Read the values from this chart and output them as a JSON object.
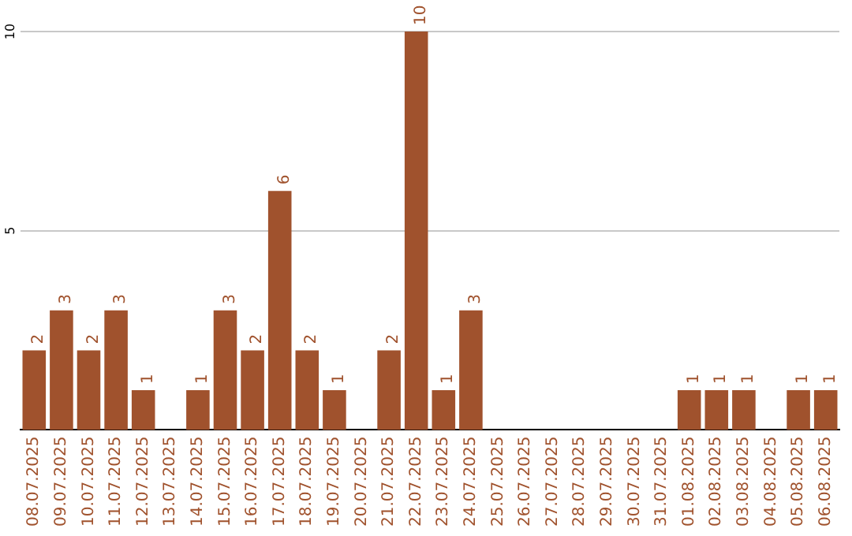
{
  "chart_data": {
    "type": "bar",
    "categories": [
      "08.07.2025",
      "09.07.2025",
      "10.07.2025",
      "11.07.2025",
      "12.07.2025",
      "13.07.2025",
      "14.07.2025",
      "15.07.2025",
      "16.07.2025",
      "17.07.2025",
      "18.07.2025",
      "19.07.2025",
      "20.07.2025",
      "21.07.2025",
      "22.07.2025",
      "23.07.2025",
      "24.07.2025",
      "25.07.2025",
      "26.07.2025",
      "27.07.2025",
      "28.07.2025",
      "29.07.2025",
      "30.07.2025",
      "31.07.2025",
      "01.08.2025",
      "02.08.2025",
      "03.08.2025",
      "04.08.2025",
      "05.08.2025",
      "06.08.2025"
    ],
    "values": [
      2,
      3,
      2,
      3,
      1,
      0,
      1,
      3,
      2,
      6,
      2,
      1,
      0,
      2,
      10,
      1,
      3,
      0,
      0,
      0,
      0,
      0,
      0,
      0,
      1,
      1,
      1,
      0,
      1,
      1
    ],
    "value_labels": [
      "2",
      "3",
      "2",
      "3",
      "1",
      null,
      "1",
      "3",
      "2",
      "6",
      "2",
      "1",
      null,
      "2",
      "10",
      "1",
      "3",
      null,
      null,
      null,
      null,
      null,
      null,
      null,
      "1",
      "1",
      "1",
      null,
      "1",
      "1"
    ],
    "color": "#a0522d",
    "ylim": [
      0,
      10
    ],
    "yticks": [
      5,
      10
    ],
    "grid": "y",
    "legend": false
  }
}
